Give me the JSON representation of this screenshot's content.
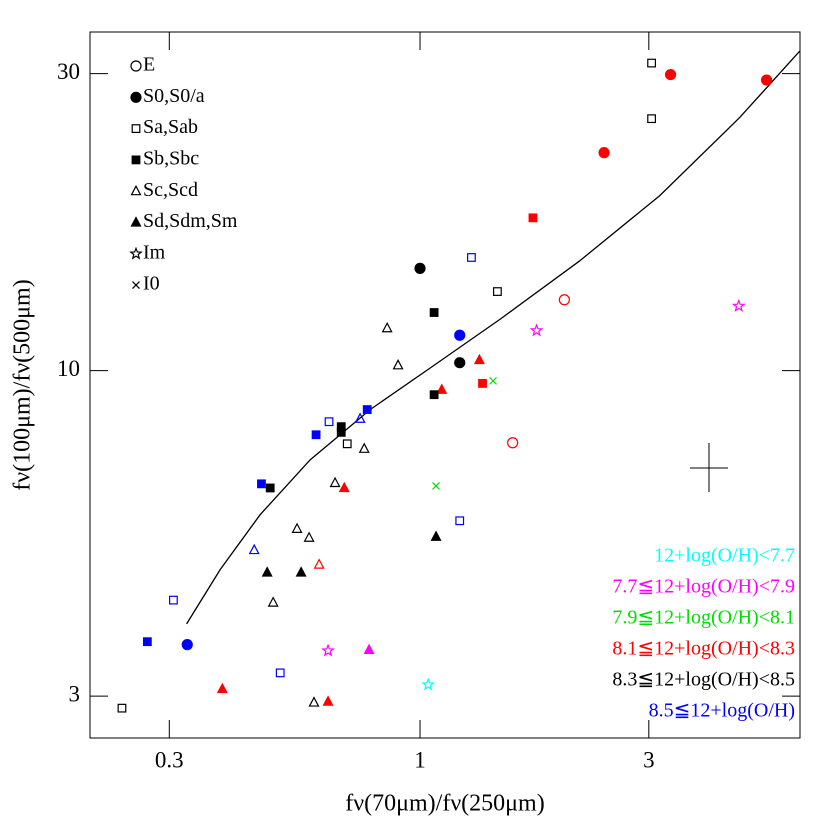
{
  "chart_data": {
    "type": "scatter",
    "x_label": "fν(70μm)/fν(250μm)",
    "y_label": "fν(100μm)/fν(500μm)",
    "log_x": true,
    "log_y": true,
    "xlim": [
      0.205,
      6.2
    ],
    "ylim": [
      2.57,
      35
    ],
    "xticks": [
      0.3,
      1,
      3
    ],
    "yticks": [
      3,
      10,
      30
    ],
    "morphology_legend": [
      {
        "label": "E",
        "symbol": "circle",
        "filled": false
      },
      {
        "label": "S0,S0/a",
        "symbol": "circle",
        "filled": true
      },
      {
        "label": "Sa,Sab",
        "symbol": "square",
        "filled": false
      },
      {
        "label": "Sb,Sbc",
        "symbol": "square",
        "filled": true
      },
      {
        "label": "Sc,Scd",
        "symbol": "triangle",
        "filled": false
      },
      {
        "label": "Sd,Sdm,Sm",
        "symbol": "triangle",
        "filled": true
      },
      {
        "label": "Im",
        "symbol": "star",
        "filled": false
      },
      {
        "label": "I0",
        "symbol": "cross",
        "filled": false
      }
    ],
    "series": [
      {
        "name": "12+log(O/H)<7.7",
        "color": "#00ffff",
        "x": [
          1.04
        ],
        "values": [
          3.13
        ],
        "types": [
          "Im"
        ]
      },
      {
        "name": "7.7≦12+log(O/H)<7.9",
        "color": "#ff00ff",
        "x": [
          4.62,
          1.75,
          0.643,
          0.783
        ],
        "values": [
          12.7,
          11.6,
          3.55,
          3.56
        ],
        "types": [
          "Im",
          "Im",
          "Im",
          "Sd,Sdm,Sm"
        ]
      },
      {
        "name": "7.9≦12+log(O/H)<8.1",
        "color": "#00dd00",
        "x": [
          1.42,
          1.08
        ],
        "values": [
          9.63,
          6.53
        ],
        "types": [
          "I0",
          "I0"
        ]
      },
      {
        "name": "8.1≦12+log(O/H)<8.3",
        "color": "#ff0000",
        "x": [
          3.33,
          5.28,
          2.42,
          1.72,
          2.0,
          1.56,
          1.33,
          1.35,
          1.11,
          0.695,
          0.616,
          0.387,
          0.643
        ],
        "values": [
          29.9,
          29.3,
          22.4,
          17.6,
          13.0,
          7.66,
          10.4,
          9.54,
          9.32,
          6.48,
          4.88,
          3.08,
          2.94
        ],
        "types": [
          "S0,S0/a",
          "S0,S0/a",
          "S0,S0/a",
          "Sb,Sbc",
          "E",
          "E",
          "Sd,Sdm,Sm",
          "Sb,Sbc",
          "Sd,Sdm,Sm",
          "Sd,Sdm,Sm",
          "Sc,Scd",
          "Sd,Sdm,Sm",
          "Sd,Sdm,Sm"
        ]
      },
      {
        "name": "8.3≦12+log(O/H)<8.5",
        "color": "#000000",
        "x": [
          0.239,
          3.04,
          3.04,
          1.45,
          0.705,
          1.0,
          1.21,
          1.07,
          1.07,
          0.685,
          0.685,
          0.487,
          0.854,
          0.9,
          0.765,
          0.665,
          0.554,
          0.587,
          0.494,
          0.601,
          0.48,
          0.565,
          1.08
        ],
        "values": [
          2.87,
          31.2,
          25.4,
          13.4,
          7.63,
          14.6,
          10.3,
          12.4,
          9.15,
          8.13,
          7.96,
          6.48,
          11.7,
          10.2,
          7.49,
          6.6,
          5.57,
          5.39,
          4.24,
          2.93,
          4.74,
          4.74,
          5.41
        ],
        "types": [
          "Sa,Sab",
          "Sa,Sab",
          "Sa,Sab",
          "Sa,Sab",
          "Sa,Sab",
          "S0,S0/a",
          "S0,S0/a",
          "Sb,Sbc",
          "Sb,Sbc",
          "Sb,Sbc",
          "Sb,Sbc",
          "Sb,Sbc",
          "Sc,Scd",
          "Sc,Scd",
          "Sc,Scd",
          "Sc,Scd",
          "Sc,Scd",
          "Sc,Scd",
          "Sc,Scd",
          "Sc,Scd",
          "Sd,Sdm,Sm",
          "Sd,Sdm,Sm",
          "Sd,Sdm,Sm"
        ]
      },
      {
        "name": "8.5≦12+log(O/H)",
        "color": "#0000ff",
        "x": [
          0.27,
          0.327,
          0.306,
          0.451,
          0.467,
          0.607,
          0.646,
          0.75,
          0.776,
          1.28,
          1.21,
          1.21,
          0.511
        ],
        "values": [
          3.67,
          3.63,
          4.28,
          5.15,
          6.58,
          7.89,
          8.28,
          8.37,
          8.66,
          15.2,
          11.4,
          5.74,
          3.27
        ],
        "types": [
          "Sb,Sbc",
          "S0,S0/a",
          "Sa,Sab",
          "Sc,Scd",
          "Sb,Sbc",
          "Sb,Sbc",
          "Sa,Sab",
          "Sc,Scd",
          "Sb,Sbc",
          "Sa,Sab",
          "S0,S0/a",
          "Sa,Sab",
          "Sa,Sab"
        ]
      }
    ],
    "curve": {
      "color": "#000000",
      "x": [
        0.326,
        0.383,
        0.464,
        0.59,
        0.787,
        1.05,
        1.47,
        2.15,
        3.16,
        4.64,
        6.19
      ],
      "values": [
        3.92,
        4.79,
        5.87,
        7.19,
        8.66,
        10.1,
        12.1,
        15.0,
        19.1,
        25.5,
        32.6
      ]
    }
  }
}
